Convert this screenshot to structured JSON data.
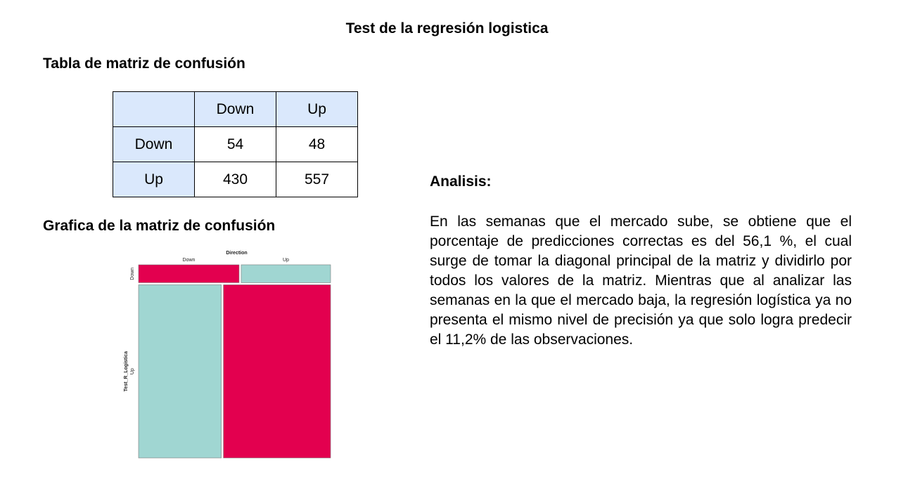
{
  "title": "Test de la regresión logistica",
  "table_heading": "Tabla de matriz de confusión",
  "chart_heading": "Grafica de la matriz de confusión",
  "confusion_table": {
    "col_headers": [
      "Down",
      "Up"
    ],
    "rows": [
      {
        "label": "Down",
        "values": [
          "54",
          "48"
        ]
      },
      {
        "label": "Up",
        "values": [
          "430",
          "557"
        ]
      }
    ]
  },
  "chart_data": {
    "type": "mosaic",
    "title": "Direction",
    "xlabel": "Direction",
    "ylabel": "Test_R_Logistica",
    "x_categories": [
      "Down",
      "Up"
    ],
    "y_categories": [
      "Down",
      "Up"
    ],
    "counts": [
      [
        54,
        48
      ],
      [
        430,
        557
      ]
    ],
    "colors": {
      "correct": "#e3004f",
      "incorrect": "#a0d6d2"
    }
  },
  "analysis": {
    "label": "Analisis:",
    "text": "En las semanas que el mercado sube, se obtiene que el porcentaje de predicciones correctas es del 56,1 %, el cual surge de tomar la diagonal principal de la matriz y dividirlo por todos los valores de la matriz. Mientras que al analizar las semanas en la que el mercado baja, la regresión logística ya no presenta el mismo nivel de precisión ya que  solo logra predecir el 11,2% de las observaciones."
  }
}
